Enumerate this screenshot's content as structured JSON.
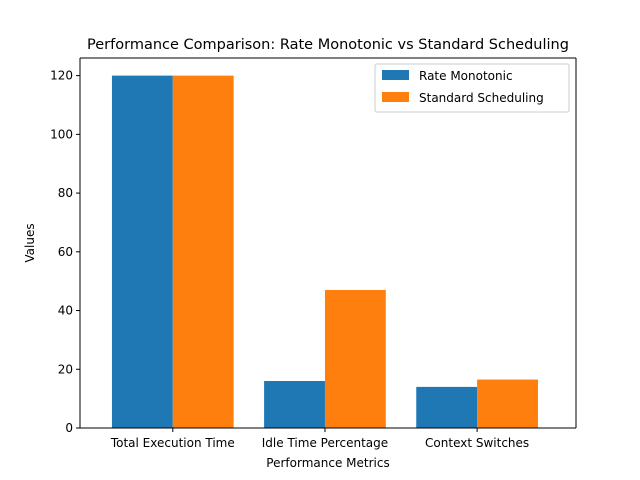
{
  "chart_data": {
    "type": "bar",
    "title": "Performance Comparison: Rate Monotonic vs Standard Scheduling",
    "xlabel": "Performance Metrics",
    "ylabel": "Values",
    "categories": [
      "Total Execution Time",
      "Idle Time Percentage",
      "Context Switches"
    ],
    "series": [
      {
        "name": "Rate Monotonic",
        "values": [
          120,
          16,
          14
        ],
        "color": "#1f77b4"
      },
      {
        "name": "Standard Scheduling",
        "values": [
          120,
          47,
          16.5
        ],
        "color": "#ff7f0e"
      }
    ],
    "ylim": [
      0,
      126
    ],
    "yticks": [
      "0",
      "20",
      "40",
      "60",
      "80",
      "100",
      "120"
    ],
    "legend_position": "top-right",
    "grid": false
  }
}
